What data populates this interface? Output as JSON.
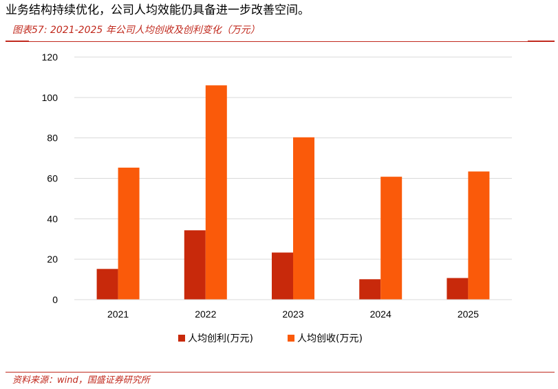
{
  "header": {
    "intro_text": "业务结构持续优化，公司人均效能仍具备进一步改善空间。",
    "figure_title": "图表57:  2021-2025 年公司人均创收及创利变化（万元）"
  },
  "footer": {
    "source": "资料来源：wind，国盛证券研究所"
  },
  "colors": {
    "accent": "#c0281c",
    "series_profit": "#c8290b",
    "series_revenue": "#fa5a0a",
    "grid": "#d9d9d9"
  },
  "chart_data": {
    "type": "bar",
    "categories": [
      "2021",
      "2022",
      "2023",
      "2024",
      "2025"
    ],
    "series": [
      {
        "name": "人均创利(万元)",
        "values": [
          15.2,
          34.3,
          23.3,
          10.1,
          10.7
        ]
      },
      {
        "name": "人均创收(万元)",
        "values": [
          65.3,
          106.0,
          80.3,
          60.8,
          63.4
        ]
      }
    ],
    "ylim": [
      0,
      120
    ],
    "yticks": [
      "0",
      "20",
      "40",
      "60",
      "80",
      "100",
      "120"
    ],
    "grid": true,
    "legend_position": "bottom"
  }
}
